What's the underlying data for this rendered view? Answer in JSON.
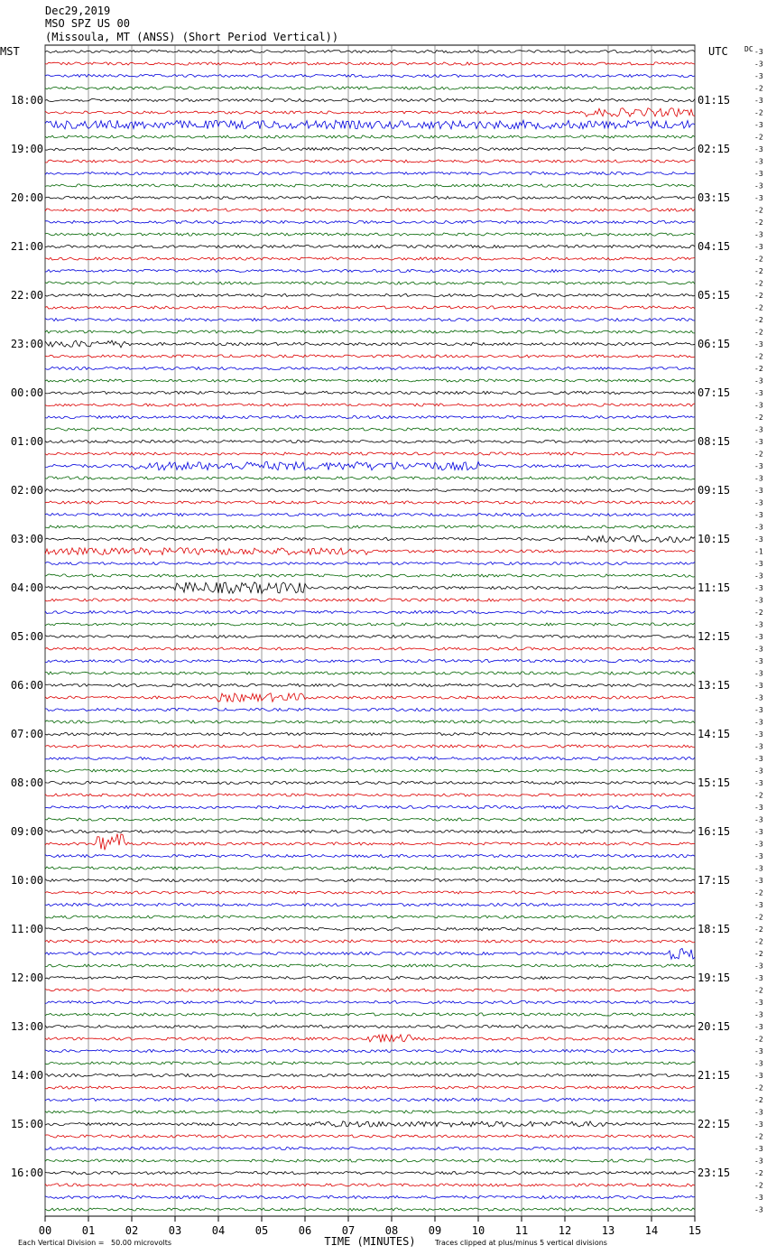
{
  "header": {
    "date": "Dec29,2019",
    "station": "MSO SPZ US 00",
    "location": "(Missoula, MT (ANSS) (Short Period Vertical))"
  },
  "left_axis_title": "MST",
  "right_axis_title": "UTC",
  "dc_label": "DC",
  "left_labels": [
    "18:00",
    "19:00",
    "20:00",
    "21:00",
    "22:00",
    "23:00",
    "00:00",
    "01:00",
    "02:00",
    "03:00",
    "04:00",
    "05:00",
    "06:00",
    "07:00",
    "08:00",
    "09:00",
    "10:00",
    "11:00",
    "12:00",
    "13:00",
    "14:00",
    "15:00",
    "16:00"
  ],
  "right_labels": [
    "01:15",
    "02:15",
    "03:15",
    "04:15",
    "05:15",
    "06:15",
    "07:15",
    "08:15",
    "09:15",
    "10:15",
    "11:15",
    "12:15",
    "13:15",
    "14:15",
    "15:15",
    "16:15",
    "17:15",
    "18:15",
    "19:15",
    "20:15",
    "21:15",
    "22:15",
    "23:15"
  ],
  "dc_values": [
    -3,
    -3,
    -3,
    -2,
    -3,
    -2,
    -3,
    -2,
    -3,
    -3,
    -3,
    -3,
    -3,
    -2,
    -2,
    -3,
    -3,
    -2,
    -2,
    -2,
    -2,
    -2,
    -2,
    -2,
    -3,
    -2,
    -2,
    -3,
    -3,
    -3,
    -2,
    -3,
    -3,
    -2,
    -3,
    -3,
    -3,
    -3,
    -3,
    -3,
    -3,
    -1,
    -3,
    -3,
    -3,
    -3,
    -2,
    -3,
    -3,
    -3,
    -3,
    -3,
    -3,
    -3,
    -3,
    -3,
    -3,
    -3,
    -3,
    -3,
    -3,
    -2,
    -3,
    -3,
    -3,
    -3,
    -3,
    -3,
    -3,
    -2,
    -3,
    -2,
    -2,
    -2,
    -2,
    -3,
    -3,
    -2,
    -3,
    -3,
    -3,
    -2,
    -3,
    -3,
    -3,
    -2,
    -2,
    -3,
    -3,
    -2,
    -3,
    -3,
    -2,
    -2,
    -3,
    -3
  ],
  "x_ticks": [
    "00",
    "01",
    "02",
    "03",
    "04",
    "05",
    "06",
    "07",
    "08",
    "09",
    "10",
    "11",
    "12",
    "13",
    "14",
    "15"
  ],
  "x_title": "TIME (MINUTES)",
  "footer_left": "Each Vertical Division =   50.00 microvolts",
  "footer_right": "Traces clipped at plus/minus 5 vertical divisions"
}
